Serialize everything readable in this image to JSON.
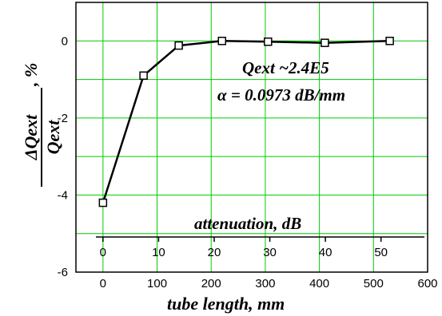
{
  "chart_data": {
    "type": "line",
    "xlabel": "tube length, mm",
    "ylabel_numerator": "ΔQext",
    "ylabel_denominator": "Qext",
    "ylabel_unit": ", %",
    "xlim": [
      -50,
      600
    ],
    "ylim": [
      -6,
      1
    ],
    "x_ticks": [
      0,
      100,
      200,
      300,
      400,
      500,
      600
    ],
    "y_ticks": [
      0,
      -2,
      -4,
      -6
    ],
    "x_tick_labels": [
      "0",
      "100",
      "200",
      "300",
      "400",
      "500",
      "600"
    ],
    "y_tick_labels": [
      "0",
      "-2",
      "-4",
      "-6"
    ],
    "grid": true,
    "grid_color": "#00cc00",
    "line_color": "#000000",
    "marker": "square",
    "points": [
      {
        "x": 0,
        "y": -4.2
      },
      {
        "x": 75,
        "y": -0.9
      },
      {
        "x": 140,
        "y": -0.12
      },
      {
        "x": 220,
        "y": 0.0
      },
      {
        "x": 305,
        "y": -0.02
      },
      {
        "x": 410,
        "y": -0.05
      },
      {
        "x": 530,
        "y": 0.0
      }
    ],
    "annotations": [
      "Qext ~2.4E5",
      "α = 0.0973 dB/mm"
    ],
    "secondary_axis": {
      "label": "attenuation, dB",
      "ticks": [
        0,
        10,
        20,
        30,
        40,
        50
      ],
      "tick_labels": [
        "0",
        "10",
        "20",
        "30",
        "40",
        "50"
      ],
      "mm_per_unit": 10.277
    }
  }
}
